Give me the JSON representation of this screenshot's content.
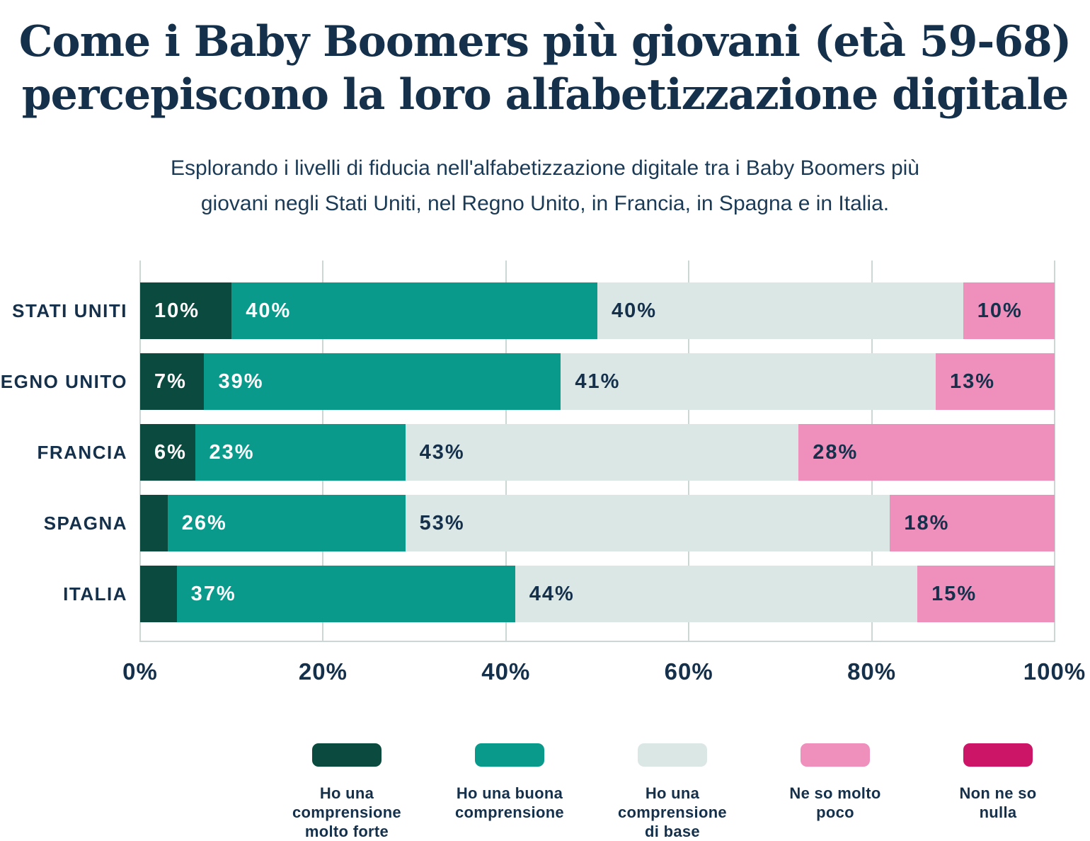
{
  "header": {
    "title_line1": "Come i Baby Boomers più giovani (età 59-68)",
    "title_line2": "percepiscono la loro alfabetizzazione digitale",
    "subtitle_line1": "Esplorando i livelli di fiducia nell'alfabetizzazione digitale tra i Baby Boomers più",
    "subtitle_line2": "giovani negli Stati Uniti, nel Regno Unito, in Francia, in Spagna e in Italia."
  },
  "chart_data": {
    "type": "bar",
    "orientation": "horizontal-stacked",
    "title": "Come i Baby Boomers più giovani (età 59-68) percepiscono la loro alfabetizzazione digitale",
    "subtitle": "Esplorando i livelli di fiducia nell'alfabetizzazione digitale tra i Baby Boomers più giovani negli Stati Uniti, nel Regno Unito, in Francia, in Spagna e in Italia.",
    "categories": [
      "STATI UNITI",
      "REGNO UNITO",
      "FRANCIA",
      "SPAGNA",
      "ITALIA"
    ],
    "series": [
      {
        "name": "Ho una comprensione molto forte",
        "legend_lines": [
          "Ho una comprensione",
          "molto forte"
        ],
        "color": "#0b4a3e",
        "label_color": "#ffffff",
        "values": [
          10,
          7,
          6,
          3,
          4
        ]
      },
      {
        "name": "Ho una buona comprensione",
        "legend_lines": [
          "Ho una buona",
          "comprensione"
        ],
        "color": "#0a9a8c",
        "label_color": "#ffffff",
        "values": [
          40,
          39,
          23,
          26,
          37
        ]
      },
      {
        "name": "Ho una comprensione di base",
        "legend_lines": [
          "Ho una comprensione",
          "di base"
        ],
        "color": "#dbe7e5",
        "label_color": "#14304b",
        "values": [
          40,
          41,
          43,
          53,
          44
        ]
      },
      {
        "name": "Ne so molto poco",
        "legend_lines": [
          "Ne so molto",
          "poco"
        ],
        "color": "#ee8fbc",
        "label_color": "#14304b",
        "values": [
          10,
          13,
          28,
          18,
          15
        ]
      },
      {
        "name": "Non ne so nulla",
        "legend_lines": [
          "Non ne so",
          "nulla"
        ],
        "color": "#cc1566",
        "label_color": "#ffffff",
        "values": [
          0,
          0,
          0,
          0,
          0
        ]
      }
    ],
    "x_ticks": [
      "0%",
      "20%",
      "40%",
      "60%",
      "80%",
      "100%"
    ],
    "xlim": [
      0,
      100
    ],
    "grid": true,
    "legend_position": "bottom",
    "value_suffix": "%",
    "colors": {
      "text_navy": "#14304b",
      "gridline": "#ccd6d5",
      "background": "#ffffff"
    }
  }
}
